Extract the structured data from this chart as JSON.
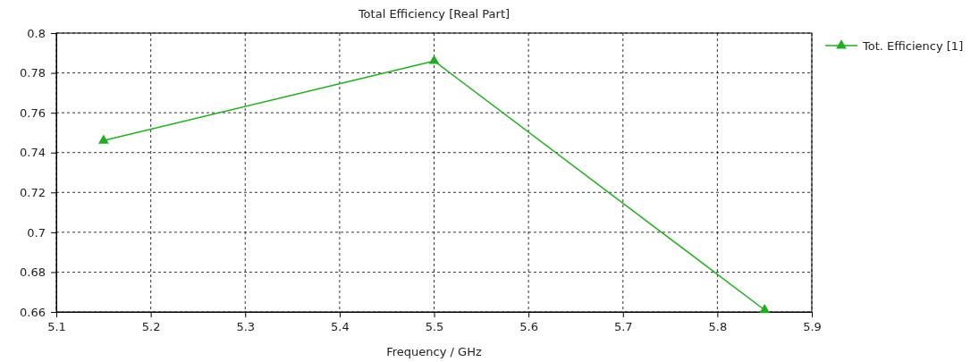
{
  "chart_data": {
    "type": "line",
    "title": "Total Efficiency [Real Part]",
    "xlabel": "Frequency / GHz",
    "x": [
      5.15,
      5.5,
      5.85
    ],
    "series": [
      {
        "name": "Tot. Efficiency [1]",
        "color": "#1fae1f",
        "values": [
          0.746,
          0.786,
          0.661
        ]
      }
    ],
    "xlim": [
      5.1,
      5.9
    ],
    "xticks": [
      5.1,
      5.2,
      5.3,
      5.4,
      5.5,
      5.6,
      5.7,
      5.8,
      5.9
    ],
    "ylim": [
      0.66,
      0.8
    ],
    "yticks": [
      0.66,
      0.68,
      0.7,
      0.72,
      0.74,
      0.76,
      0.78,
      0.8
    ],
    "grid": true,
    "legend": "top right",
    "marker": "triangle",
    "line_style": "solid"
  }
}
